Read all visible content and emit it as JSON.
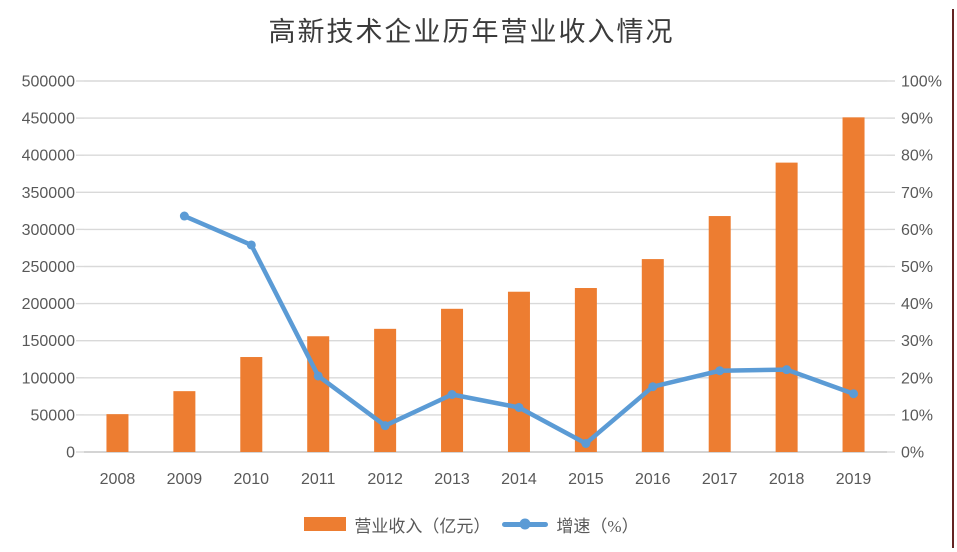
{
  "colors": {
    "background": "#FFFFFF",
    "bar": "#ED7D31",
    "line": "#5B9BD5",
    "gridline": "#D9D9D9",
    "axis_baseline": "#C6C6C6",
    "axis_text": "#595959",
    "title_text": "#3B3B3B",
    "right_edge_line": "#622423"
  },
  "chart_data": {
    "type": "combo",
    "title": "高新技术企业历年营业收入情况",
    "categories": [
      "2008",
      "2009",
      "2010",
      "2011",
      "2012",
      "2013",
      "2014",
      "2015",
      "2016",
      "2017",
      "2018",
      "2019"
    ],
    "series": [
      {
        "name": "营业收入（亿元）",
        "type": "bar",
        "axis": "left",
        "color": "#ED7D31",
        "values": [
          51000,
          82000,
          128000,
          156000,
          166000,
          193000,
          216000,
          221000,
          260000,
          318000,
          390000,
          451000
        ]
      },
      {
        "name": "增速（%）",
        "type": "line",
        "axis": "right",
        "color": "#5B9BD5",
        "values": [
          null,
          63.6,
          55.8,
          20.5,
          7.1,
          15.5,
          12.0,
          2.3,
          17.6,
          21.9,
          22.2,
          15.7
        ]
      }
    ],
    "left_axis": {
      "min": 0,
      "max": 500000,
      "step": 50000,
      "tick_labels": [
        "0",
        "50000",
        "100000",
        "150000",
        "200000",
        "250000",
        "300000",
        "350000",
        "400000",
        "450000",
        "500000"
      ]
    },
    "right_axis": {
      "min": 0,
      "max": 100,
      "step": 10,
      "unit": "%",
      "tick_labels": [
        "0%",
        "10%",
        "20%",
        "30%",
        "40%",
        "50%",
        "60%",
        "70%",
        "80%",
        "90%",
        "100%"
      ]
    },
    "grid": true,
    "legend_position": "bottom"
  },
  "legend": {
    "revenue_label": "营业收入（亿元）",
    "growth_label": "增速（%）"
  }
}
